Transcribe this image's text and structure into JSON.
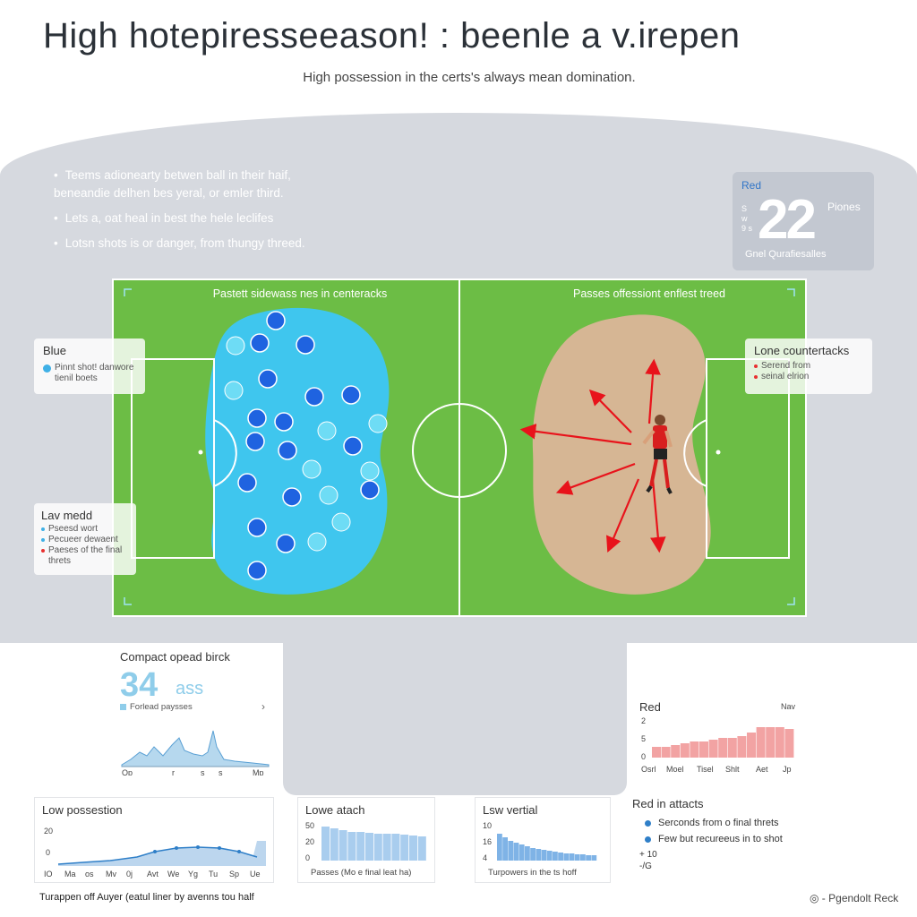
{
  "header": {
    "title": "High hotepiresseeason! : beenle a v.irepen",
    "subtitle": "High possession in the certs's always mean domination."
  },
  "bullets": [
    "Teems adionearty betwen ball in their haif, beneandie delhen bes yeral, or emler third.",
    "Lets a, oat heal in best the hele leclifes",
    "Lotsn shots is or danger, from thungy threed."
  ],
  "stat_card": {
    "label": "Red",
    "value": "22",
    "side_label": "Piones",
    "mini": "S w 9 s",
    "footer": "Gnel Qurafiesalles"
  },
  "pitch": {
    "left_zone_label": "Pastett sidewass nes in centeracks",
    "right_zone_label": "Passes offessiont enflest treed",
    "colors": {
      "grass": "#6cbd45",
      "blue_zone": "#3fc6ee",
      "red_zone": "#d6b694",
      "arrow": "#e8131b",
      "dot_dark": "#1f63e0",
      "dot_light": "#6edcf5"
    }
  },
  "legend_blue": {
    "title": "Blue",
    "rows": [
      "Pinnt shot! danwore",
      "tienil boets"
    ]
  },
  "legend_low": {
    "title": "Lav medd",
    "rows": [
      "Pseesd wort",
      "Pecueer dewaent",
      "Paeses of the final threts"
    ]
  },
  "legend_counter": {
    "title": "Lone countertacks",
    "rows": [
      "Serend from",
      "seinal elrion"
    ]
  },
  "compact_card": {
    "title": "Compact opead birck",
    "big": "34",
    "unit": "ass",
    "sub": "Forlead paysses",
    "chevron": "›",
    "ticks": [
      "Op",
      "r",
      "s",
      "s",
      "Mp"
    ]
  },
  "red_card": {
    "title": "Red",
    "corner": "Nav",
    "y_ticks": [
      "2",
      "5",
      "0"
    ],
    "x_ticks": [
      "Osrl",
      "Moel",
      "Tisel",
      "Shlt",
      "Aet",
      "Jp"
    ]
  },
  "low_possession": {
    "title": "Low possestion",
    "y_ticks": [
      "20",
      "0"
    ],
    "x_ticks": [
      "IO",
      "Ma",
      "os",
      "Mv",
      "0j",
      "Avt",
      "We",
      "Yg",
      "Tu",
      "Sp",
      "Ue"
    ]
  },
  "low_attach": {
    "title": "Lowe atach",
    "y_ticks": [
      "50",
      "20",
      "0"
    ],
    "caption": "Passes (Mo e final leat ha)"
  },
  "low_vertical": {
    "title": "Lsw vertial",
    "y_ticks": [
      "10",
      "16",
      "4"
    ],
    "caption": "Turpowers in the ts hoff"
  },
  "red_attacts": {
    "title": "Red in attacts",
    "rows": [
      "Serconds from o final threts",
      "Few but recureeus in to shot"
    ],
    "extra1": "+ 10",
    "extra2": "-/G"
  },
  "footer": {
    "left": "Turappen off Auyer (eatul liner by avenns tou half",
    "right": "Pgendolt Reck",
    "right_icon": "◎ -"
  }
}
